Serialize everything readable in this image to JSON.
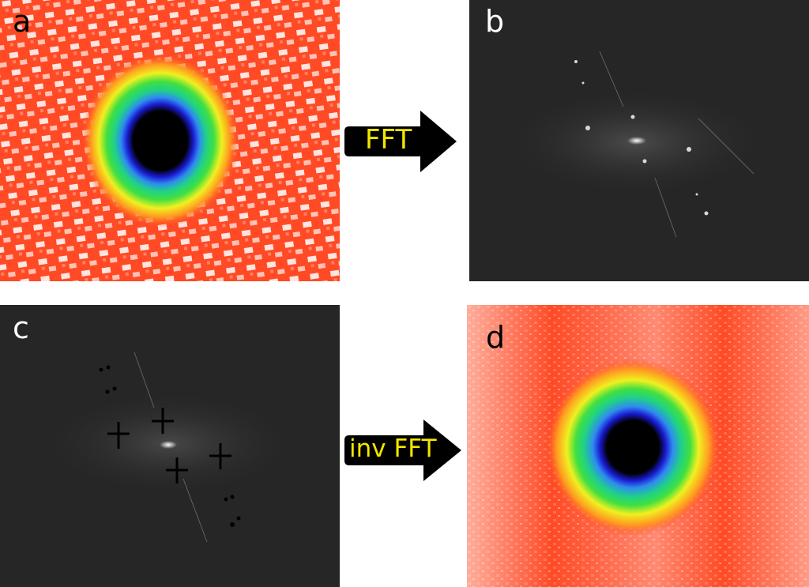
{
  "panels": {
    "a": {
      "label": "a"
    },
    "b": {
      "label": "b"
    },
    "c": {
      "label": "c"
    },
    "d": {
      "label": "d"
    }
  },
  "arrows": {
    "forward": {
      "label": "FFT"
    },
    "inverse": {
      "label": "inv FFT"
    }
  },
  "colors": {
    "arrow_fill": "#000000",
    "arrow_text": "#f2e600",
    "fft_background": "#262626",
    "heat_red": "#ff3a1f",
    "heat_white": "#ffffff",
    "label_dark": "#000000",
    "label_light": "#ffffff"
  }
}
